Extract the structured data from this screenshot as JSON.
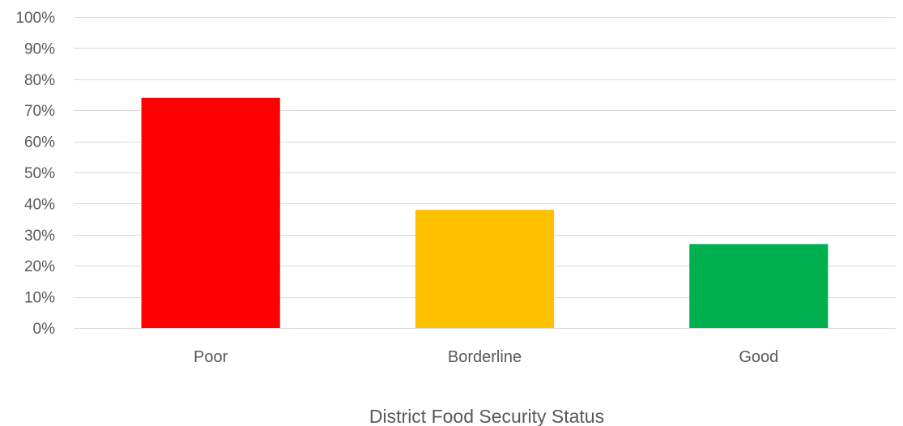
{
  "chart_data": {
    "type": "bar",
    "title": "",
    "xlabel": "District Food Security Status",
    "ylabel": "",
    "ylim": [
      0,
      100
    ],
    "y_ticks": [
      0,
      10,
      20,
      30,
      40,
      50,
      60,
      70,
      80,
      90,
      100
    ],
    "y_tick_format": "{v}%",
    "grid": true,
    "legend": "none",
    "categories": [
      "Poor",
      "Borderline",
      "Good"
    ],
    "values": [
      74,
      38,
      27
    ],
    "colors": [
      "#ff0000",
      "#ffc000",
      "#00b050"
    ]
  }
}
